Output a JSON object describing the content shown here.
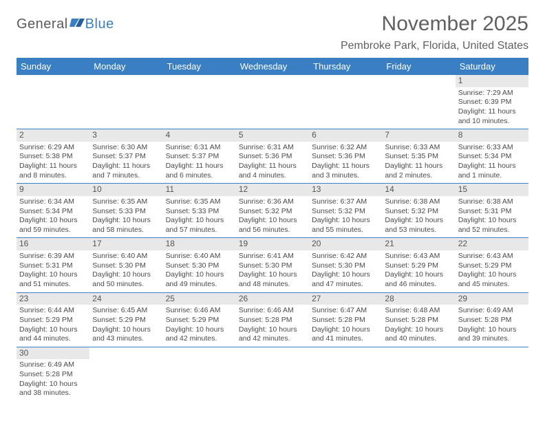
{
  "logo": {
    "part1": "General",
    "part2": "Blue"
  },
  "title": "November 2025",
  "location": "Pembroke Park, Florida, United States",
  "colors": {
    "header_bg": "#3a7fc4",
    "header_text": "#ffffff",
    "daynum_bg": "#e8e8e8",
    "text": "#4a4a4a",
    "row_border": "#3a7fc4"
  },
  "weekdays": [
    "Sunday",
    "Monday",
    "Tuesday",
    "Wednesday",
    "Thursday",
    "Friday",
    "Saturday"
  ],
  "weeks": [
    [
      null,
      null,
      null,
      null,
      null,
      null,
      {
        "n": "1",
        "sunrise": "7:29 AM",
        "sunset": "6:39 PM",
        "daylight": "11 hours and 10 minutes."
      }
    ],
    [
      {
        "n": "2",
        "sunrise": "6:29 AM",
        "sunset": "5:38 PM",
        "daylight": "11 hours and 8 minutes."
      },
      {
        "n": "3",
        "sunrise": "6:30 AM",
        "sunset": "5:37 PM",
        "daylight": "11 hours and 7 minutes."
      },
      {
        "n": "4",
        "sunrise": "6:31 AM",
        "sunset": "5:37 PM",
        "daylight": "11 hours and 6 minutes."
      },
      {
        "n": "5",
        "sunrise": "6:31 AM",
        "sunset": "5:36 PM",
        "daylight": "11 hours and 4 minutes."
      },
      {
        "n": "6",
        "sunrise": "6:32 AM",
        "sunset": "5:36 PM",
        "daylight": "11 hours and 3 minutes."
      },
      {
        "n": "7",
        "sunrise": "6:33 AM",
        "sunset": "5:35 PM",
        "daylight": "11 hours and 2 minutes."
      },
      {
        "n": "8",
        "sunrise": "6:33 AM",
        "sunset": "5:34 PM",
        "daylight": "11 hours and 1 minute."
      }
    ],
    [
      {
        "n": "9",
        "sunrise": "6:34 AM",
        "sunset": "5:34 PM",
        "daylight": "10 hours and 59 minutes."
      },
      {
        "n": "10",
        "sunrise": "6:35 AM",
        "sunset": "5:33 PM",
        "daylight": "10 hours and 58 minutes."
      },
      {
        "n": "11",
        "sunrise": "6:35 AM",
        "sunset": "5:33 PM",
        "daylight": "10 hours and 57 minutes."
      },
      {
        "n": "12",
        "sunrise": "6:36 AM",
        "sunset": "5:32 PM",
        "daylight": "10 hours and 56 minutes."
      },
      {
        "n": "13",
        "sunrise": "6:37 AM",
        "sunset": "5:32 PM",
        "daylight": "10 hours and 55 minutes."
      },
      {
        "n": "14",
        "sunrise": "6:38 AM",
        "sunset": "5:32 PM",
        "daylight": "10 hours and 53 minutes."
      },
      {
        "n": "15",
        "sunrise": "6:38 AM",
        "sunset": "5:31 PM",
        "daylight": "10 hours and 52 minutes."
      }
    ],
    [
      {
        "n": "16",
        "sunrise": "6:39 AM",
        "sunset": "5:31 PM",
        "daylight": "10 hours and 51 minutes."
      },
      {
        "n": "17",
        "sunrise": "6:40 AM",
        "sunset": "5:30 PM",
        "daylight": "10 hours and 50 minutes."
      },
      {
        "n": "18",
        "sunrise": "6:40 AM",
        "sunset": "5:30 PM",
        "daylight": "10 hours and 49 minutes."
      },
      {
        "n": "19",
        "sunrise": "6:41 AM",
        "sunset": "5:30 PM",
        "daylight": "10 hours and 48 minutes."
      },
      {
        "n": "20",
        "sunrise": "6:42 AM",
        "sunset": "5:30 PM",
        "daylight": "10 hours and 47 minutes."
      },
      {
        "n": "21",
        "sunrise": "6:43 AM",
        "sunset": "5:29 PM",
        "daylight": "10 hours and 46 minutes."
      },
      {
        "n": "22",
        "sunrise": "6:43 AM",
        "sunset": "5:29 PM",
        "daylight": "10 hours and 45 minutes."
      }
    ],
    [
      {
        "n": "23",
        "sunrise": "6:44 AM",
        "sunset": "5:29 PM",
        "daylight": "10 hours and 44 minutes."
      },
      {
        "n": "24",
        "sunrise": "6:45 AM",
        "sunset": "5:29 PM",
        "daylight": "10 hours and 43 minutes."
      },
      {
        "n": "25",
        "sunrise": "6:46 AM",
        "sunset": "5:29 PM",
        "daylight": "10 hours and 42 minutes."
      },
      {
        "n": "26",
        "sunrise": "6:46 AM",
        "sunset": "5:28 PM",
        "daylight": "10 hours and 42 minutes."
      },
      {
        "n": "27",
        "sunrise": "6:47 AM",
        "sunset": "5:28 PM",
        "daylight": "10 hours and 41 minutes."
      },
      {
        "n": "28",
        "sunrise": "6:48 AM",
        "sunset": "5:28 PM",
        "daylight": "10 hours and 40 minutes."
      },
      {
        "n": "29",
        "sunrise": "6:49 AM",
        "sunset": "5:28 PM",
        "daylight": "10 hours and 39 minutes."
      }
    ],
    [
      {
        "n": "30",
        "sunrise": "6:49 AM",
        "sunset": "5:28 PM",
        "daylight": "10 hours and 38 minutes."
      },
      null,
      null,
      null,
      null,
      null,
      null
    ]
  ],
  "labels": {
    "sunrise": "Sunrise:",
    "sunset": "Sunset:",
    "daylight": "Daylight:"
  }
}
